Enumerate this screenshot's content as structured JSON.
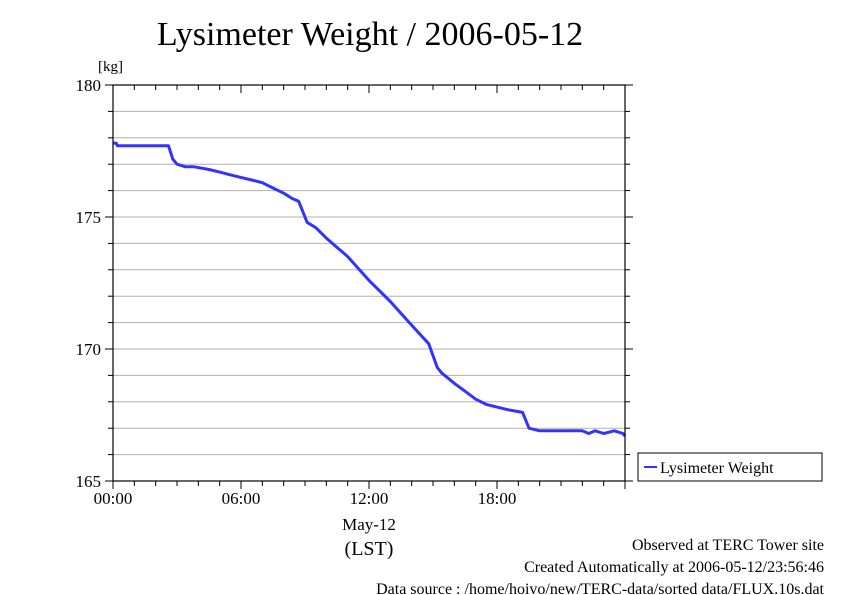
{
  "chart_data": {
    "type": "line",
    "title": "Lysimeter Weight / 2006-05-12",
    "ylabel": "[kg]",
    "xlabel_date": "May-12",
    "xlabel_tz": "(LST)",
    "ylim": [
      165,
      180
    ],
    "xlim_hours": [
      0,
      24
    ],
    "y_ticks": [
      165,
      170,
      175,
      180
    ],
    "x_ticks": [
      {
        "h": 0,
        "label": "00:00"
      },
      {
        "h": 6,
        "label": "06:00"
      },
      {
        "h": 12,
        "label": "12:00"
      },
      {
        "h": 18,
        "label": "18:00"
      }
    ],
    "grid": true,
    "legend_position": "right",
    "series": [
      {
        "name": "Lysimeter Weight",
        "color": "#3333ff",
        "x": [
          0,
          0.15,
          0.2,
          2.6,
          2.8,
          3.0,
          3.4,
          3.8,
          4.5,
          5.0,
          5.5,
          6.0,
          6.5,
          7.0,
          7.5,
          8.0,
          8.4,
          8.7,
          9.1,
          9.5,
          10.0,
          11.0,
          12.0,
          13.0,
          14.0,
          14.8,
          15.2,
          15.4,
          16.0,
          16.5,
          17.0,
          17.5,
          18.0,
          18.5,
          19.2,
          19.5,
          20.0,
          20.5,
          22.0,
          22.3,
          22.6,
          23.0,
          23.5,
          23.9,
          24.0
        ],
        "y": [
          177.8,
          177.8,
          177.7,
          177.7,
          177.2,
          177.0,
          176.9,
          176.9,
          176.8,
          176.7,
          176.6,
          176.5,
          176.4,
          176.3,
          176.1,
          175.9,
          175.7,
          175.6,
          174.8,
          174.6,
          174.2,
          173.5,
          172.6,
          171.8,
          170.9,
          170.2,
          169.3,
          169.1,
          168.7,
          168.4,
          168.1,
          167.9,
          167.8,
          167.7,
          167.6,
          167.0,
          166.9,
          166.9,
          166.9,
          166.8,
          166.9,
          166.8,
          166.9,
          166.8,
          166.7
        ]
      }
    ]
  },
  "footer": {
    "line1": "Observed at TERC Tower site",
    "line2": "Created Automatically at 2006-05-12/23:56:46",
    "line3": "Data source : /home/hoivo/new/TERC-data/sorted  data/FLUX.10s.dat"
  }
}
